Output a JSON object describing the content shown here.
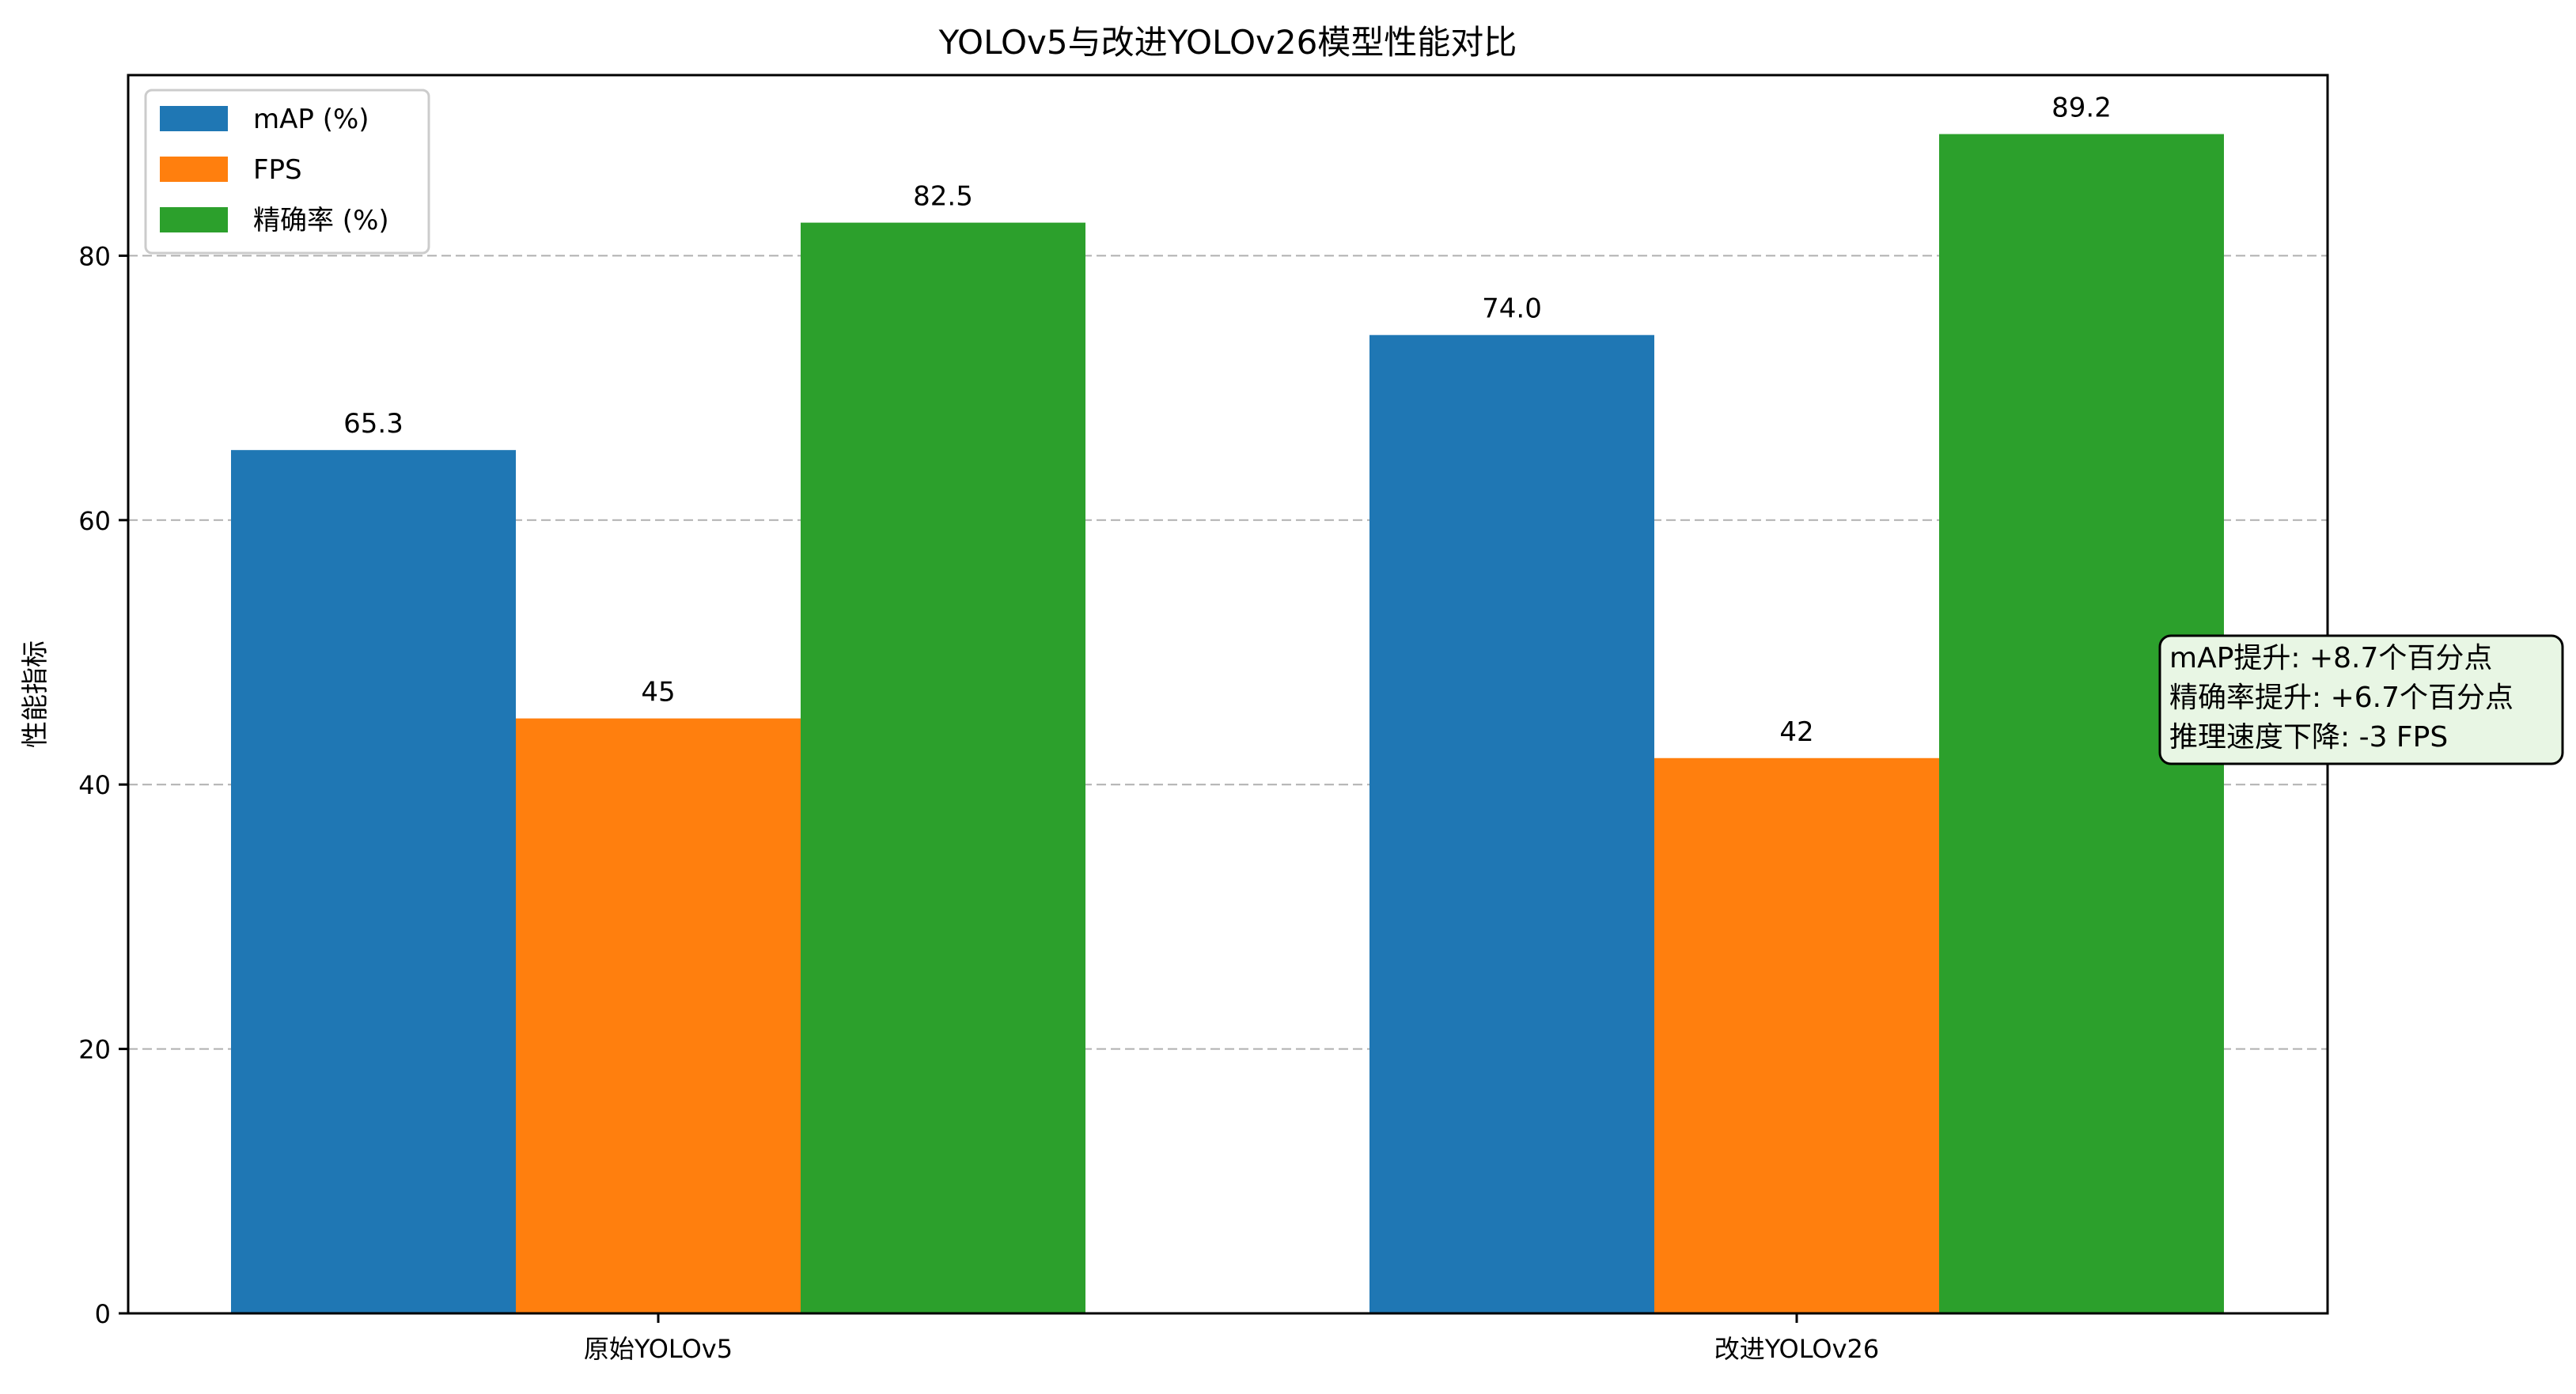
{
  "chart_data": {
    "type": "bar",
    "title": "YOLOv5与改进YOLOv26模型性能对比",
    "xlabel": "",
    "ylabel": "性能指标",
    "categories": [
      "原始YOLOv5",
      "改进YOLOv26"
    ],
    "series": [
      {
        "name": "mAP (%)",
        "values": [
          65.3,
          74.0
        ],
        "labels": [
          "65.3",
          "74.0"
        ],
        "color": "#1f77b4"
      },
      {
        "name": "FPS",
        "values": [
          45,
          42
        ],
        "labels": [
          "45",
          "42"
        ],
        "color": "#ff7f0e"
      },
      {
        "name": "精确率 (%)",
        "values": [
          82.5,
          89.2
        ],
        "labels": [
          "82.5",
          "89.2"
        ],
        "color": "#2ca02c"
      }
    ],
    "ylim": [
      0,
      93.66
    ],
    "yticks": [
      "0",
      "20",
      "40",
      "60",
      "80"
    ],
    "grid": "y-dashed",
    "legend_position": "top-left",
    "annotation": {
      "lines": [
        "mAP提升: +8.7个百分点",
        "精确率提升: +6.7个百分点",
        "推理速度下降: -3 FPS"
      ],
      "background": "#e8f6e4"
    }
  }
}
